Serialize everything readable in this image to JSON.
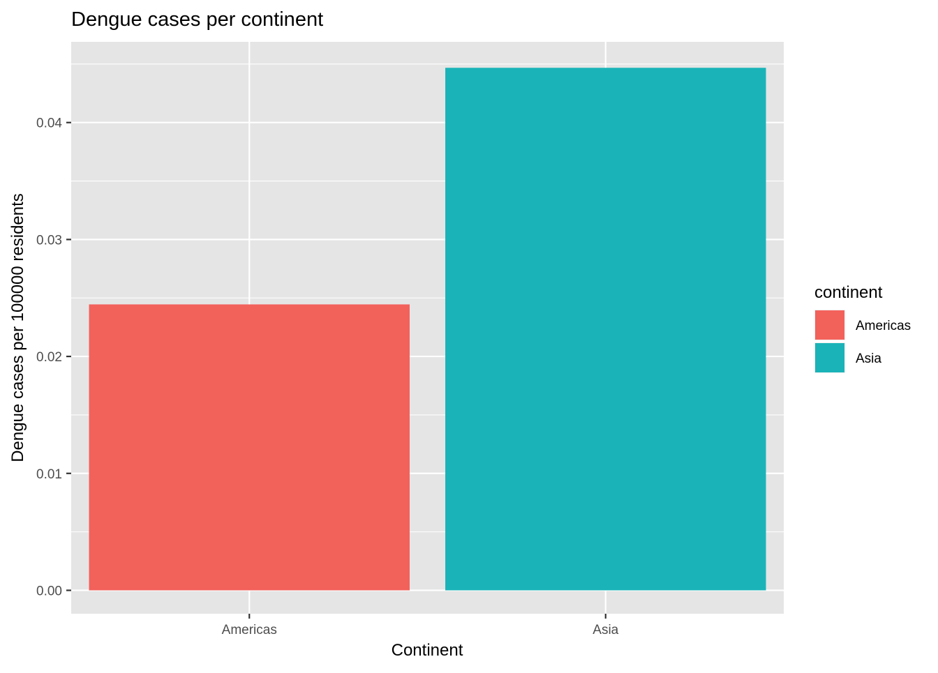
{
  "chart_data": {
    "type": "bar",
    "title": "Dengue cases per continent",
    "xlabel": "Continent",
    "ylabel": "Dengue cases per 100000 residents",
    "categories": [
      "Americas",
      "Asia"
    ],
    "values": [
      0.02445,
      0.04468
    ],
    "ylim": [
      -0.002,
      0.0469
    ],
    "yticks": [
      0,
      0.01,
      0.02,
      0.03,
      0.04
    ],
    "ytick_labels": [
      "0.00",
      "0.01",
      "0.02",
      "0.03",
      "0.04"
    ],
    "grid": true,
    "legend": {
      "title": "continent",
      "placement": "right",
      "entries": [
        "Americas",
        "Asia"
      ]
    },
    "colors": {
      "Americas": "#F3615B",
      "Asia": "#1AB3B8",
      "panel_background": "#E5E5E5",
      "grid": "#FFFFFF"
    }
  }
}
